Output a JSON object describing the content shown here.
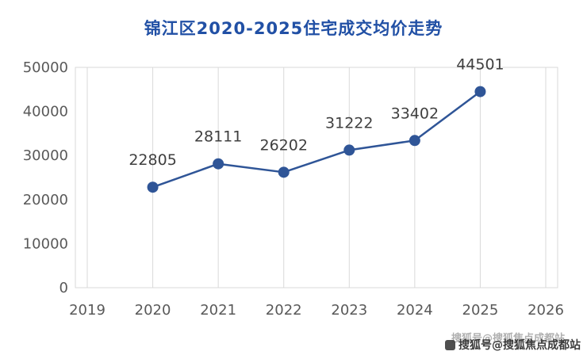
{
  "title": "锦江区2020-2025住宅成交均价走势",
  "chart_data": {
    "type": "line",
    "title": "锦江区2020-2025住宅成交均价走势",
    "x": [
      2020,
      2021,
      2022,
      2023,
      2024,
      2025
    ],
    "series": [
      {
        "name": "住宅成交均价",
        "values": [
          22805,
          28111,
          26202,
          31222,
          33402,
          44501
        ]
      }
    ],
    "data_labels": [
      "22805",
      "28111",
      "26202",
      "31222",
      "33402",
      "44501"
    ],
    "xlabel": "",
    "ylabel": "",
    "xlim": [
      2019,
      2026
    ],
    "ylim": [
      0,
      50000
    ],
    "x_ticks": [
      2019,
      2020,
      2021,
      2022,
      2023,
      2024,
      2025,
      2026
    ],
    "y_ticks": [
      0,
      10000,
      20000,
      30000,
      40000,
      50000
    ],
    "grid": "vertical-only",
    "legend": "none",
    "line_color": "#2f5597",
    "marker": "filled-circle"
  },
  "colors": {
    "title": "#2150a5",
    "axis_text": "#595959",
    "grid": "#d9d9d9",
    "plot_border": "#d9d9d9",
    "data_label": "#3f3f3f",
    "background": "#ffffff"
  },
  "watermark": {
    "front": "搜狐号@搜狐焦点成都站",
    "back": "搜狐号@搜狐焦点成都站"
  }
}
